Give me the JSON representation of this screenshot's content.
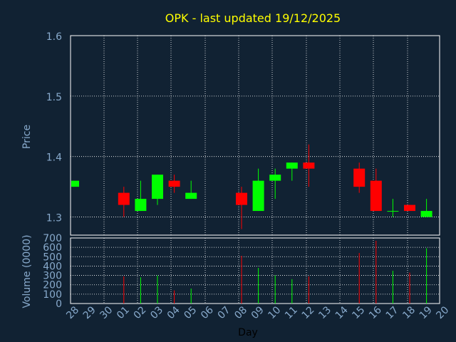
{
  "chart_data": {
    "type": "candlestick",
    "title": "OPK - last updated 19/12/2025",
    "xlabel": "Day",
    "colors": {
      "background": "#112233",
      "up": "#00ff00",
      "down": "#ff0000",
      "title": "#ffff00",
      "axis_text": "#88aacc",
      "grid": "#ffffff"
    },
    "x_tick_labels": [
      "28",
      "29",
      "30",
      "01",
      "02",
      "03",
      "04",
      "05",
      "06",
      "07",
      "08",
      "09",
      "10",
      "11",
      "12",
      "13",
      "14",
      "15",
      "16",
      "17",
      "18",
      "19",
      "20"
    ],
    "price": {
      "ylabel": "Price",
      "ylim": [
        1.27,
        1.6
      ],
      "y_ticks": [
        "1.3",
        "1.4",
        "1.5",
        "1.6"
      ],
      "grid": true,
      "candles": [
        {
          "day": "28",
          "open": 1.35,
          "high": 1.36,
          "low": 1.35,
          "close": 1.36
        },
        {
          "day": "01",
          "open": 1.34,
          "high": 1.35,
          "low": 1.3,
          "close": 1.32
        },
        {
          "day": "02",
          "open": 1.31,
          "high": 1.36,
          "low": 1.31,
          "close": 1.33
        },
        {
          "day": "03",
          "open": 1.33,
          "high": 1.37,
          "low": 1.32,
          "close": 1.37
        },
        {
          "day": "04",
          "open": 1.36,
          "high": 1.37,
          "low": 1.34,
          "close": 1.35
        },
        {
          "day": "05",
          "open": 1.33,
          "high": 1.36,
          "low": 1.33,
          "close": 1.34
        },
        {
          "day": "08",
          "open": 1.34,
          "high": 1.35,
          "low": 1.28,
          "close": 1.32
        },
        {
          "day": "09",
          "open": 1.31,
          "high": 1.38,
          "low": 1.31,
          "close": 1.36
        },
        {
          "day": "10",
          "open": 1.36,
          "high": 1.38,
          "low": 1.33,
          "close": 1.37
        },
        {
          "day": "11",
          "open": 1.38,
          "high": 1.39,
          "low": 1.36,
          "close": 1.39
        },
        {
          "day": "12",
          "open": 1.39,
          "high": 1.42,
          "low": 1.35,
          "close": 1.38
        },
        {
          "day": "15",
          "open": 1.38,
          "high": 1.39,
          "low": 1.34,
          "close": 1.35
        },
        {
          "day": "16",
          "open": 1.36,
          "high": 1.38,
          "low": 1.31,
          "close": 1.31
        },
        {
          "day": "17",
          "open": 1.31,
          "high": 1.33,
          "low": 1.3,
          "close": 1.31
        },
        {
          "day": "18",
          "open": 1.32,
          "high": 1.32,
          "low": 1.31,
          "close": 1.31
        },
        {
          "day": "19",
          "open": 1.3,
          "high": 1.33,
          "low": 1.3,
          "close": 1.31
        }
      ]
    },
    "volume": {
      "ylabel": "Volume (0000)",
      "ylim": [
        0,
        700
      ],
      "y_ticks": [
        "0",
        "100",
        "200",
        "300",
        "400",
        "500",
        "600",
        "700"
      ],
      "grid": true,
      "bars": [
        {
          "day": "01",
          "value": 290,
          "dir": "down"
        },
        {
          "day": "02",
          "value": 280,
          "dir": "up"
        },
        {
          "day": "03",
          "value": 300,
          "dir": "up"
        },
        {
          "day": "04",
          "value": 140,
          "dir": "down"
        },
        {
          "day": "05",
          "value": 160,
          "dir": "up"
        },
        {
          "day": "08",
          "value": 510,
          "dir": "down"
        },
        {
          "day": "09",
          "value": 380,
          "dir": "up"
        },
        {
          "day": "10",
          "value": 300,
          "dir": "up"
        },
        {
          "day": "11",
          "value": 260,
          "dir": "up"
        },
        {
          "day": "12",
          "value": 290,
          "dir": "down"
        },
        {
          "day": "15",
          "value": 540,
          "dir": "down"
        },
        {
          "day": "16",
          "value": 670,
          "dir": "down"
        },
        {
          "day": "17",
          "value": 350,
          "dir": "up"
        },
        {
          "day": "18",
          "value": 330,
          "dir": "down"
        },
        {
          "day": "19",
          "value": 590,
          "dir": "up"
        }
      ]
    }
  }
}
